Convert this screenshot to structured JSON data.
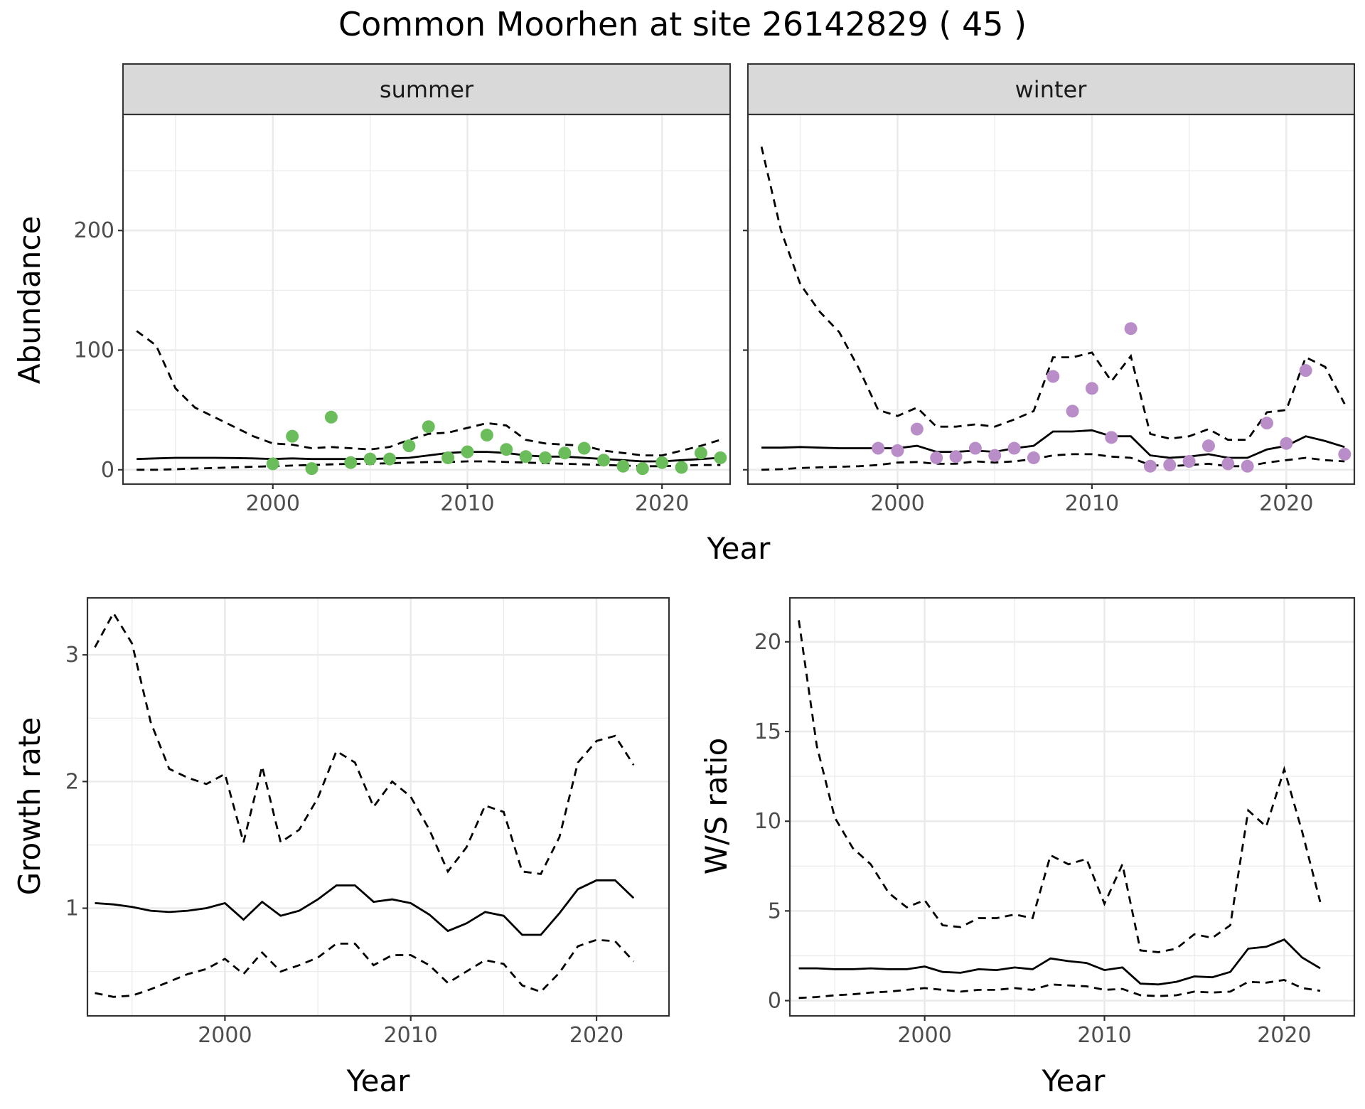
{
  "figure": {
    "title": "Common Moorhen at site 26142829 ( 45 )"
  },
  "colors": {
    "summer_points": "#6bbd5b",
    "winter_points": "#b98dc8",
    "lines": "#000000",
    "strip_fill": "#d9d9d9",
    "grid": "#ebebeb",
    "border": "#333333"
  },
  "chart_data": [
    {
      "type": "scatter",
      "panel": "summer",
      "xlabel": "Year",
      "ylabel": "Abundance",
      "xlim": [
        1992.3,
        2023.5
      ],
      "ylim": [
        -12,
        297
      ],
      "xticks": [
        2000,
        2010,
        2020
      ],
      "yticks": [
        0,
        100,
        200
      ],
      "grid": true,
      "points": {
        "x": [
          2000,
          2001,
          2002,
          2003,
          2004,
          2005,
          2006,
          2007,
          2008,
          2009,
          2010,
          2011,
          2012,
          2013,
          2014,
          2015,
          2016,
          2017,
          2018,
          2019,
          2020,
          2021,
          2022,
          2023
        ],
        "y": [
          5,
          28,
          1,
          44,
          6,
          9,
          9,
          20,
          36,
          10,
          15,
          29,
          17,
          11,
          10,
          14,
          18,
          8,
          3,
          1,
          6,
          2,
          14,
          10
        ]
      },
      "lines": {
        "x": [
          1993,
          1994,
          1995,
          1996,
          1997,
          1998,
          1999,
          2000,
          2001,
          2002,
          2003,
          2004,
          2005,
          2006,
          2007,
          2008,
          2009,
          2010,
          2011,
          2012,
          2013,
          2014,
          2015,
          2016,
          2017,
          2018,
          2019,
          2020,
          2021,
          2022,
          2023
        ],
        "estimate": [
          9,
          9.5,
          10,
          10,
          10,
          9.8,
          9.5,
          9,
          9.5,
          9,
          9,
          9,
          9,
          9.5,
          10,
          12,
          14,
          15,
          15,
          14,
          12,
          11,
          11,
          10,
          9,
          8,
          7,
          7,
          8,
          9,
          10
        ],
        "lower": [
          0,
          0,
          0.5,
          1,
          1.5,
          2,
          2.5,
          3,
          3.5,
          4,
          4.5,
          5,
          5,
          5.5,
          6,
          6.5,
          6.5,
          7,
          7,
          6.5,
          6,
          5.5,
          5,
          4.5,
          4,
          3.5,
          3,
          3,
          3.5,
          4,
          4
        ],
        "upper": [
          116,
          104,
          68,
          52,
          44,
          36,
          28,
          22,
          21,
          18,
          19,
          18,
          17,
          19,
          25,
          30,
          31,
          35,
          39,
          37,
          25,
          22,
          21,
          20,
          16,
          14,
          12,
          12,
          16,
          20,
          25
        ]
      }
    },
    {
      "type": "scatter",
      "panel": "winter",
      "xlabel": "Year",
      "ylabel": "Abundance",
      "xlim": [
        1992.3,
        2023.5
      ],
      "ylim": [
        -12,
        297
      ],
      "xticks": [
        2000,
        2010,
        2020
      ],
      "yticks": [
        0,
        100,
        200
      ],
      "grid": true,
      "points": {
        "x": [
          1999,
          2000,
          2001,
          2002,
          2003,
          2004,
          2005,
          2006,
          2007,
          2008,
          2009,
          2010,
          2011,
          2012,
          2013,
          2014,
          2015,
          2016,
          2017,
          2018,
          2019,
          2020,
          2021,
          2023
        ],
        "y": [
          18,
          16,
          34,
          10,
          11,
          18,
          12,
          18,
          10,
          78,
          49,
          68,
          27,
          118,
          3,
          4,
          7,
          20,
          5,
          3,
          39,
          22,
          83,
          13
        ]
      },
      "lines": {
        "x": [
          1993,
          1994,
          1995,
          1996,
          1997,
          1998,
          1999,
          2000,
          2001,
          2002,
          2003,
          2004,
          2005,
          2006,
          2007,
          2008,
          2009,
          2010,
          2011,
          2012,
          2013,
          2014,
          2015,
          2016,
          2017,
          2018,
          2019,
          2020,
          2021,
          2022,
          2023
        ],
        "estimate": [
          18.5,
          18.5,
          19,
          18.5,
          18,
          18,
          18,
          18,
          20,
          15,
          15,
          16,
          15,
          18,
          20,
          32,
          32,
          33,
          28,
          28,
          12,
          10,
          11,
          13,
          10,
          10,
          17,
          20,
          28,
          24,
          19
        ],
        "lower": [
          0,
          0.5,
          1.5,
          2,
          2.5,
          3,
          4,
          6,
          6.5,
          5,
          5,
          7,
          6,
          7,
          9,
          12,
          13,
          13,
          11,
          10,
          4,
          3,
          4,
          5,
          3,
          3,
          6,
          8,
          10,
          8,
          7
        ],
        "upper": [
          270,
          200,
          155,
          132,
          115,
          85,
          50,
          45,
          52,
          36,
          36,
          38,
          36,
          42,
          49,
          94,
          94,
          98,
          74,
          95,
          30,
          26,
          28,
          34,
          25,
          25,
          48,
          50,
          94,
          86,
          55
        ]
      }
    },
    {
      "type": "line",
      "panel": "growth",
      "xlabel": "Year",
      "ylabel": "Growth rate",
      "xlim": [
        1992.6,
        2023.9
      ],
      "ylim": [
        0.15,
        3.45
      ],
      "xticks": [
        2000,
        2010,
        2020
      ],
      "yticks": [
        1,
        2,
        3
      ],
      "grid": true,
      "lines": {
        "x": [
          1993,
          1994,
          1995,
          1996,
          1997,
          1998,
          1999,
          2000,
          2001,
          2002,
          2003,
          2004,
          2005,
          2006,
          2007,
          2008,
          2009,
          2010,
          2011,
          2012,
          2013,
          2014,
          2015,
          2016,
          2017,
          2018,
          2019,
          2020,
          2021,
          2022
        ],
        "estimate": [
          1.04,
          1.03,
          1.01,
          0.98,
          0.97,
          0.98,
          1.0,
          1.04,
          0.91,
          1.05,
          0.94,
          0.98,
          1.07,
          1.18,
          1.18,
          1.05,
          1.07,
          1.04,
          0.95,
          0.82,
          0.88,
          0.97,
          0.94,
          0.79,
          0.79,
          0.96,
          1.15,
          1.22,
          1.22,
          1.08
        ],
        "lower": [
          0.33,
          0.3,
          0.31,
          0.36,
          0.42,
          0.48,
          0.52,
          0.6,
          0.48,
          0.65,
          0.5,
          0.55,
          0.61,
          0.72,
          0.72,
          0.55,
          0.63,
          0.63,
          0.55,
          0.41,
          0.5,
          0.59,
          0.56,
          0.39,
          0.34,
          0.49,
          0.7,
          0.75,
          0.74,
          0.58
        ],
        "upper": [
          3.06,
          3.33,
          3.09,
          2.47,
          2.1,
          2.03,
          1.98,
          2.06,
          1.52,
          2.12,
          1.52,
          1.62,
          1.87,
          2.24,
          2.15,
          1.8,
          2.0,
          1.88,
          1.62,
          1.29,
          1.48,
          1.81,
          1.76,
          1.29,
          1.27,
          1.56,
          2.15,
          2.32,
          2.36,
          2.13
        ]
      }
    },
    {
      "type": "line",
      "panel": "ws_ratio",
      "xlabel": "Year",
      "ylabel": "W/S ratio",
      "xlim": [
        1992.5,
        2023.9
      ],
      "ylim": [
        -0.85,
        22.45
      ],
      "xticks": [
        2000,
        2010,
        2020
      ],
      "yticks": [
        0,
        5,
        10,
        15,
        20
      ],
      "grid": true,
      "lines": {
        "x": [
          1993,
          1994,
          1995,
          1996,
          1997,
          1998,
          1999,
          2000,
          2001,
          2002,
          2003,
          2004,
          2005,
          2006,
          2007,
          2008,
          2009,
          2010,
          2011,
          2012,
          2013,
          2014,
          2015,
          2016,
          2017,
          2018,
          2019,
          2020,
          2021,
          2022
        ],
        "estimate": [
          1.8,
          1.8,
          1.75,
          1.75,
          1.8,
          1.75,
          1.75,
          1.9,
          1.6,
          1.55,
          1.75,
          1.7,
          1.85,
          1.75,
          2.35,
          2.2,
          2.1,
          1.7,
          1.85,
          0.95,
          0.9,
          1.05,
          1.35,
          1.3,
          1.6,
          2.9,
          3.0,
          3.4,
          2.4,
          1.8
        ],
        "lower": [
          0.15,
          0.2,
          0.3,
          0.35,
          0.45,
          0.5,
          0.6,
          0.7,
          0.6,
          0.5,
          0.6,
          0.6,
          0.7,
          0.6,
          0.9,
          0.85,
          0.8,
          0.6,
          0.65,
          0.3,
          0.25,
          0.3,
          0.5,
          0.45,
          0.5,
          1.05,
          1.0,
          1.15,
          0.7,
          0.55
        ],
        "upper": [
          21.2,
          14.2,
          10.2,
          8.5,
          7.6,
          6.0,
          5.2,
          5.6,
          4.2,
          4.1,
          4.6,
          4.6,
          4.8,
          4.6,
          8.1,
          7.6,
          7.9,
          5.4,
          7.6,
          2.8,
          2.7,
          2.9,
          3.7,
          3.5,
          4.2,
          10.6,
          9.7,
          12.9,
          9.4,
          5.5
        ]
      }
    }
  ]
}
